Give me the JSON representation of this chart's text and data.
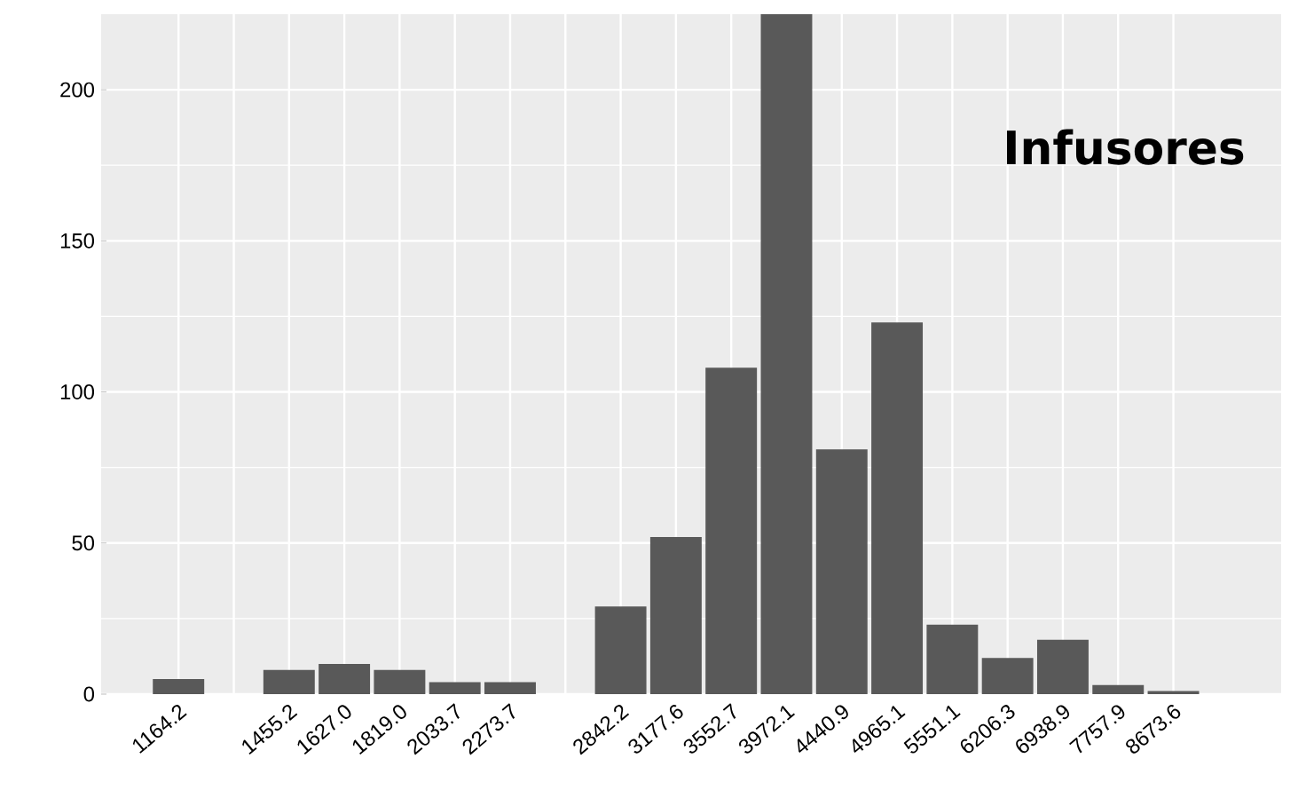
{
  "chart_data": {
    "type": "bar",
    "categories": [
      "1164.2",
      null,
      "1455.2",
      "1627.0",
      "1819.0",
      "2033.7",
      "2273.7",
      null,
      "2842.2",
      "3177.6",
      "3552.7",
      "3972.1",
      "4440.9",
      "4965.1",
      "5551.1",
      "6206.3",
      "6938.9",
      "7757.9",
      "8673.6"
    ],
    "values": [
      5,
      null,
      8,
      10,
      8,
      4,
      4,
      null,
      29,
      52,
      108,
      225,
      81,
      123,
      23,
      12,
      18,
      3,
      1
    ],
    "color": "#595959",
    "ylim": [
      0,
      225
    ],
    "yticks": [
      0,
      50,
      100,
      150,
      200
    ],
    "grid": true,
    "annotations": [
      "Infusores"
    ]
  }
}
